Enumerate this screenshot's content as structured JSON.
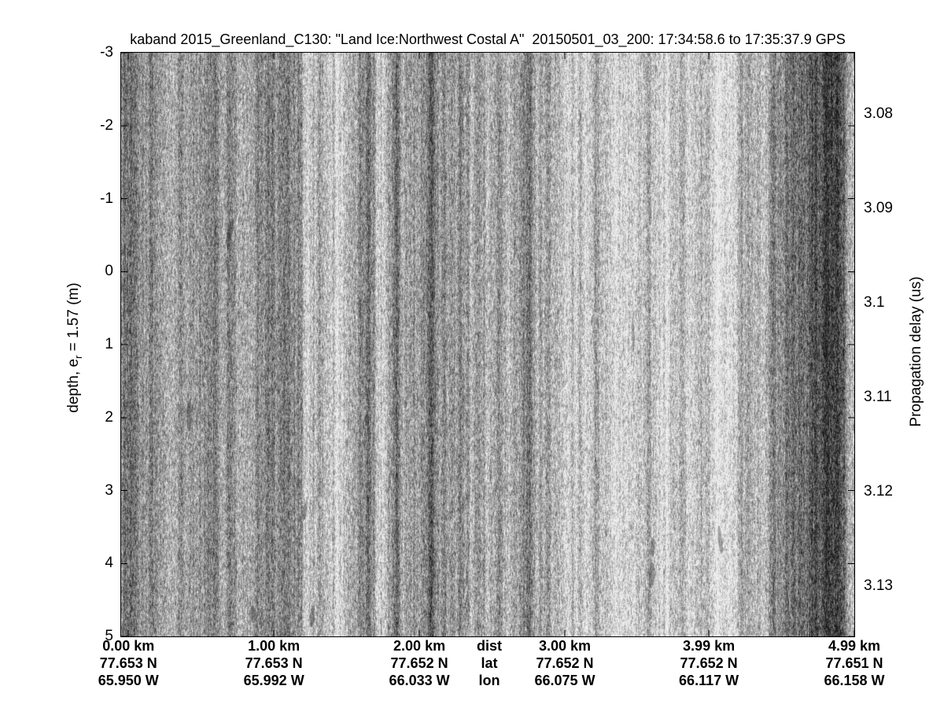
{
  "colors": {
    "background": "#ffffff",
    "text": "#000000",
    "plot_border": "#000000",
    "noise_mean_gray": "#949494",
    "noise_light_speckle": "#dcdcdc",
    "noise_dark_streak": "#5a5a5a"
  },
  "chart_data": {
    "type": "heatmap",
    "title": "kaband 2015_Greenland_C130: \"Land Ice:Northwest Costal A\"  20150501_03_200: 17:34:58.6 to 17:35:37.9 GPS",
    "description": "Grayscale ka-band radar echogram (speckle image with vertical streak texture); no discrete data series are resolvable",
    "left_axis": {
      "label_pre": "depth, e",
      "label_sub": "r",
      "label_post": " = 1.57 (m)",
      "ticks": [
        -3,
        -2,
        -1,
        0,
        1,
        2,
        3,
        4,
        5
      ],
      "range": [
        -3,
        5
      ]
    },
    "right_axis": {
      "label": "Propagation delay (us)",
      "ticks": [
        {
          "label": "3.08",
          "value": 3.08
        },
        {
          "label": "3.09",
          "value": 3.09
        },
        {
          "label": "3.1",
          "value": 3.1
        },
        {
          "label": "3.11",
          "value": 3.11
        },
        {
          "label": "3.12",
          "value": 3.12
        },
        {
          "label": "3.13",
          "value": 3.13
        }
      ],
      "range": [
        3.0735,
        3.1353
      ]
    },
    "x_axis": {
      "range_km": [
        -0.05,
        4.99
      ],
      "caption_rows": [
        "dist",
        "lat",
        "lon"
      ],
      "columns": [
        {
          "km": 0.0,
          "dist": "0.00 km",
          "lat": "77.653 N",
          "lon": "65.950 W"
        },
        {
          "km": 1.0,
          "dist": "1.00 km",
          "lat": "77.653 N",
          "lon": "65.992 W"
        },
        {
          "km": 2.0,
          "dist": "2.00 km",
          "lat": "77.652 N",
          "lon": "66.033 W"
        },
        {
          "km": 3.0,
          "dist": "3.00 km",
          "lat": "77.652 N",
          "lon": "66.075 W"
        },
        {
          "km": 3.99,
          "dist": "3.99 km",
          "lat": "77.652 N",
          "lon": "66.117 W"
        },
        {
          "km": 4.99,
          "dist": "4.99 km",
          "lat": "77.651 N",
          "lon": "66.158 W"
        }
      ]
    },
    "legend": null,
    "grid": false
  }
}
